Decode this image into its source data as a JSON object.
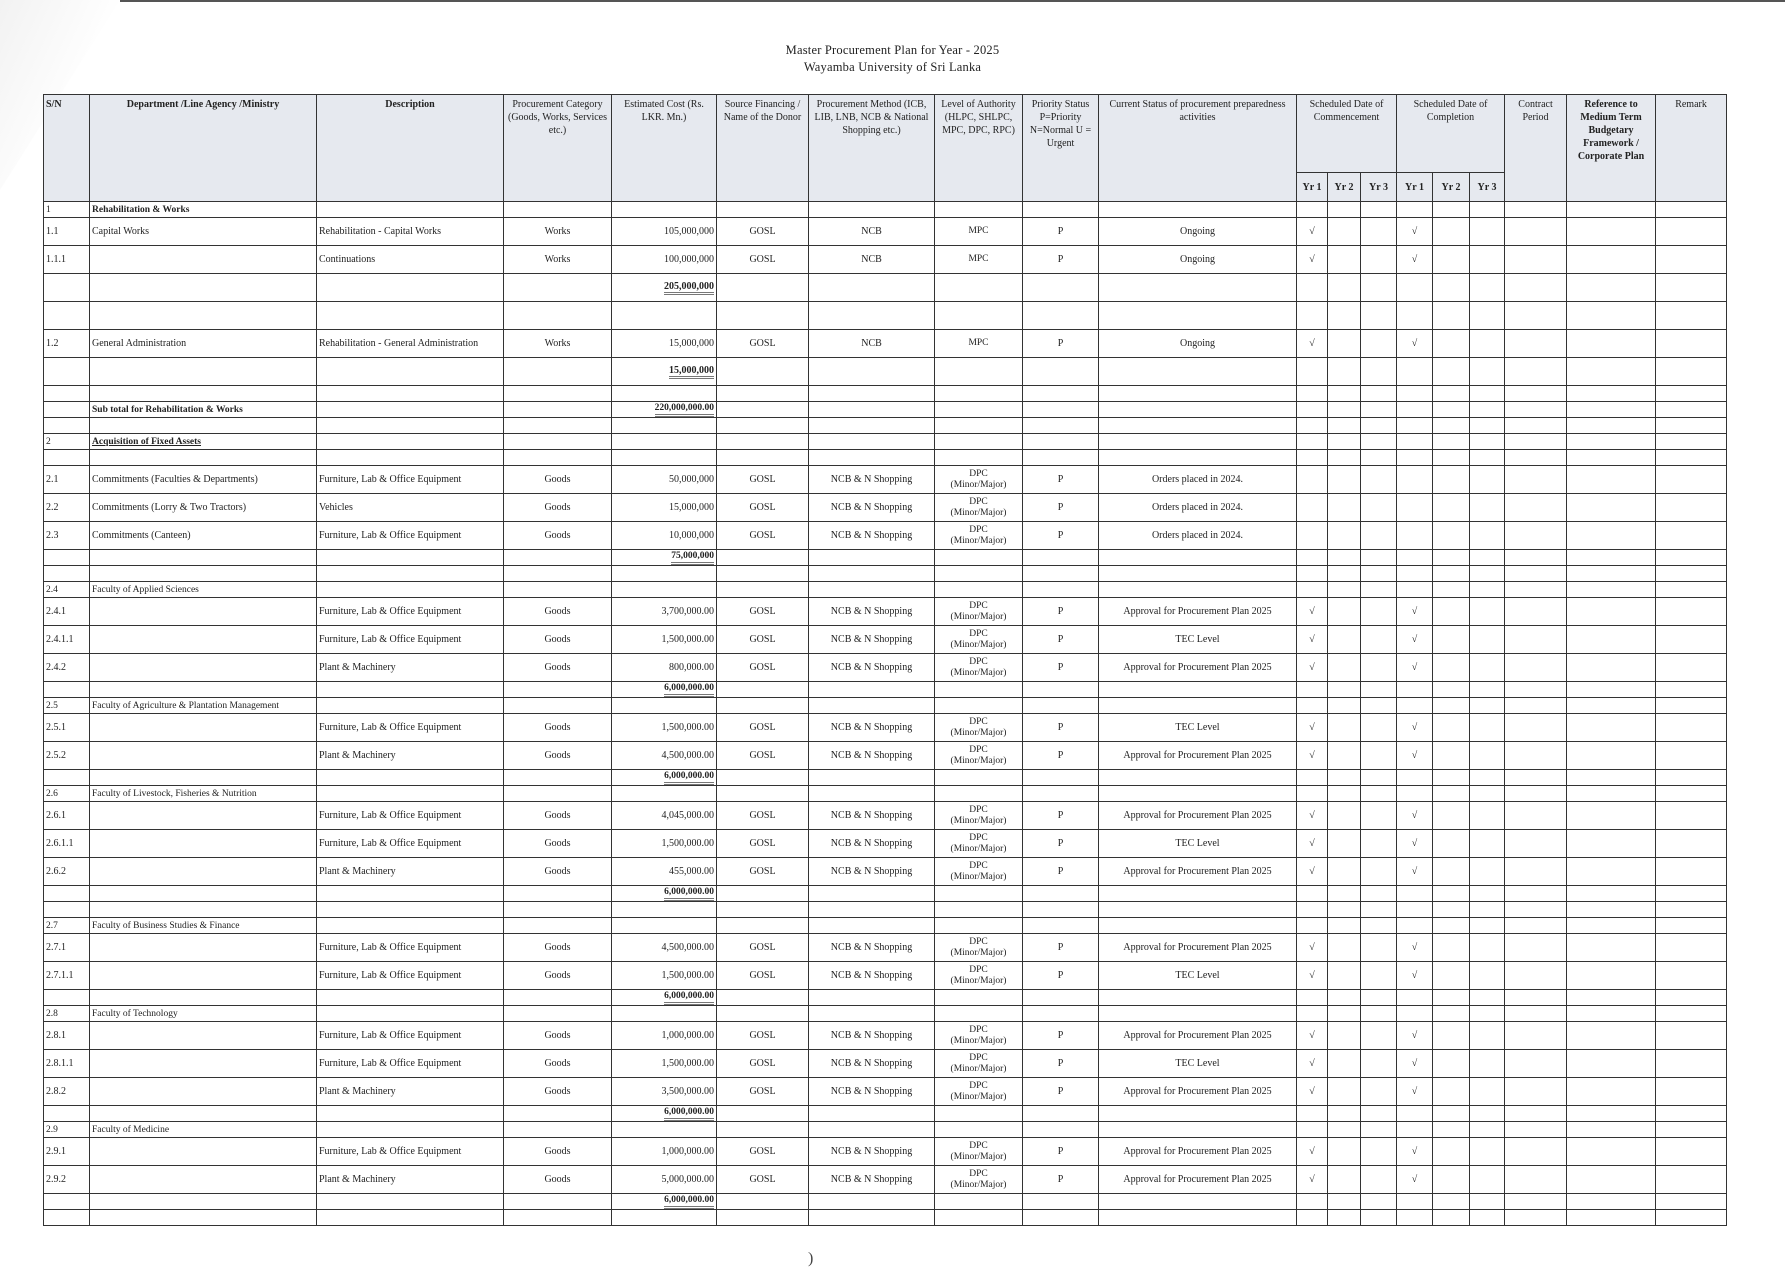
{
  "document": {
    "title": "Master Procurement Plan for Year - 2025",
    "subtitle": "Wayamba University of Sri Lanka"
  },
  "headers": {
    "sn": "S/N",
    "dept": "Department /Line Agency /Ministry",
    "desc": "Description",
    "cat": "Procurement Category (Goods, Works, Services etc.)",
    "cost": "Estimated Cost (Rs. LKR. Mn.)",
    "src": "Source Financing / Name of the Donor",
    "method": "Procurement Method (ICB, LIB, LNB, NCB & National Shopping etc.)",
    "auth": "Level of Authority (HLPC, SHLPC, MPC, DPC, RPC)",
    "pri": "Priority Status P=Priority N=Normal U = Urgent",
    "status": "Current Status of procurement preparedness activities",
    "commence": "Scheduled Date of Commencement",
    "complete": "Scheduled Date of Completion",
    "contract": "Contract Period",
    "ref": "Reference to Medium Term Budgetary Framework / Corporate Plan",
    "remark": "Remark",
    "yr1": "Yr 1",
    "yr2": "Yr 2",
    "yr3": "Yr 3"
  },
  "rows": [
    {
      "kind": "section",
      "sn": "1",
      "dept": "Rehabilitation  & Works",
      "style": "bold"
    },
    {
      "kind": "item",
      "sn": "1.1",
      "dept": "Capital Works",
      "desc": "Rehabilitation  - Capital Works",
      "cat": "Works",
      "cost": "105,000,000",
      "src": "GOSL",
      "method": "NCB",
      "auth": "MPC",
      "pri": "P",
      "status": "Ongoing",
      "c1": "√",
      "e1": "√"
    },
    {
      "kind": "item",
      "sn": "1.1.1",
      "desc": "Continuations",
      "cat": "Works",
      "cost": "100,000,000",
      "src": "GOSL",
      "method": "NCB",
      "auth": "MPC",
      "pri": "P",
      "status": "Ongoing",
      "c1": "√",
      "e1": "√"
    },
    {
      "kind": "tall",
      "cost": "205,000,000",
      "subtotal": true
    },
    {
      "kind": "tall"
    },
    {
      "kind": "item",
      "sn": "1.2",
      "dept": "General Administration",
      "desc": "Rehabilitation  - General Administration",
      "cat": "Works",
      "cost": "15,000,000",
      "src": "GOSL",
      "method": "NCB",
      "auth": "MPC",
      "pri": "P",
      "status": "Ongoing",
      "c1": "√",
      "e1": "√"
    },
    {
      "kind": "tall",
      "cost": "15,000,000",
      "subtotal": true
    },
    {
      "kind": "small"
    },
    {
      "kind": "small",
      "dept": "Sub total for Rehabilitation & Works",
      "cost": "220,000,000.00",
      "subtotal": true,
      "style": "bold"
    },
    {
      "kind": "small"
    },
    {
      "kind": "section",
      "sn": "2",
      "dept": "Acquisition of Fixed Assets",
      "style": "bold ul"
    },
    {
      "kind": "small"
    },
    {
      "kind": "item",
      "sn": "2.1",
      "dept": "Commitments (Faculties & Departments)",
      "desc": "Furniture, Lab & Office Equipment",
      "cat": "Goods",
      "cost": "50,000,000",
      "src": "GOSL",
      "method": "NCB & N Shopping",
      "auth": "DPC\n(Minor/Major)",
      "pri": "P",
      "status": "Orders placed in 2024."
    },
    {
      "kind": "item",
      "sn": "2.2",
      "dept": "Commitments (Lorry & Two Tractors)",
      "desc": "Vehicles",
      "cat": "Goods",
      "cost": "15,000,000",
      "src": "GOSL",
      "method": "NCB & N Shopping",
      "auth": "DPC\n(Minor/Major)",
      "pri": "P",
      "status": "Orders placed in 2024."
    },
    {
      "kind": "item",
      "sn": "2.3",
      "dept": "Commitments (Canteen)",
      "desc": "Furniture, Lab & Office Equipment",
      "cat": "Goods",
      "cost": "10,000,000",
      "src": "GOSL",
      "method": "NCB & N Shopping",
      "auth": "DPC\n(Minor/Major)",
      "pri": "P",
      "status": "Orders placed in 2024."
    },
    {
      "kind": "small",
      "cost": "75,000,000",
      "subtotal": true
    },
    {
      "kind": "small"
    },
    {
      "kind": "section",
      "sn": "2.4",
      "dept": "Faculty of Applied Sciences"
    },
    {
      "kind": "item",
      "sn": "2.4.1",
      "desc": "Furniture, Lab & Office Equipment",
      "cat": "Goods",
      "cost": "3,700,000.00",
      "src": "GOSL",
      "method": "NCB & N Shopping",
      "auth": "DPC\n(Minor/Major)",
      "pri": "P",
      "status": "Approval for Procurement Plan 2025",
      "c1": "√",
      "e1": "√"
    },
    {
      "kind": "item",
      "sn": "2.4.1.1",
      "desc": "Furniture, Lab & Office Equipment",
      "cat": "Goods",
      "cost": "1,500,000.00",
      "src": "GOSL",
      "method": "NCB & N Shopping",
      "auth": "DPC\n(Minor/Major)",
      "pri": "P",
      "status": "TEC Level",
      "c1": "√",
      "e1": "√"
    },
    {
      "kind": "item",
      "sn": "2.4.2",
      "desc": "Plant & Machinery",
      "cat": "Goods",
      "cost": "800,000.00",
      "src": "GOSL",
      "method": "NCB & N Shopping",
      "auth": "DPC\n(Minor/Major)",
      "pri": "P",
      "status": "Approval for Procurement Plan 2025",
      "c1": "√",
      "e1": "√"
    },
    {
      "kind": "small",
      "cost": "6,000,000.00",
      "subtotal": true
    },
    {
      "kind": "section",
      "sn": "2.5",
      "dept": "Faculty of Agriculture & Plantation Management"
    },
    {
      "kind": "item",
      "sn": "2.5.1",
      "desc": "Furniture, Lab & Office Equipment",
      "cat": "Goods",
      "cost": "1,500,000.00",
      "src": "GOSL",
      "method": "NCB & N Shopping",
      "auth": "DPC\n(Minor/Major)",
      "pri": "P",
      "status": "TEC Level",
      "c1": "√",
      "e1": "√"
    },
    {
      "kind": "item",
      "sn": "2.5.2",
      "desc": "Plant & Machinery",
      "cat": "Goods",
      "cost": "4,500,000.00",
      "src": "GOSL",
      "method": "NCB & N Shopping",
      "auth": "DPC\n(Minor/Major)",
      "pri": "P",
      "status": "Approval for Procurement Plan 2025",
      "c1": "√",
      "e1": "√"
    },
    {
      "kind": "small",
      "cost": "6,000,000.00",
      "subtotal": true
    },
    {
      "kind": "section",
      "sn": "2.6",
      "dept": "Faculty of Livestock, Fisheries & Nutrition"
    },
    {
      "kind": "item",
      "sn": "2.6.1",
      "desc": "Furniture, Lab & Office Equipment",
      "cat": "Goods",
      "cost": "4,045,000.00",
      "src": "GOSL",
      "method": "NCB & N Shopping",
      "auth": "DPC\n(Minor/Major)",
      "pri": "P",
      "status": "Approval for Procurement Plan 2025",
      "c1": "√",
      "e1": "√"
    },
    {
      "kind": "item",
      "sn": "2.6.1.1",
      "desc": "Furniture, Lab & Office Equipment",
      "cat": "Goods",
      "cost": "1,500,000.00",
      "src": "GOSL",
      "method": "NCB & N Shopping",
      "auth": "DPC\n(Minor/Major)",
      "pri": "P",
      "status": "TEC Level",
      "c1": "√",
      "e1": "√"
    },
    {
      "kind": "item",
      "sn": "2.6.2",
      "desc": "Plant & Machinery",
      "cat": "Goods",
      "cost": "455,000.00",
      "src": "GOSL",
      "method": "NCB & N Shopping",
      "auth": "DPC\n(Minor/Major)",
      "pri": "P",
      "status": "Approval for Procurement Plan 2025",
      "c1": "√",
      "e1": "√"
    },
    {
      "kind": "small",
      "cost": "6,000,000.00",
      "subtotal": true
    },
    {
      "kind": "small"
    },
    {
      "kind": "section",
      "sn": "2.7",
      "dept": "Faculty of Business Studies & Finance"
    },
    {
      "kind": "item",
      "sn": "2.7.1",
      "desc": "Furniture, Lab & Office Equipment",
      "cat": "Goods",
      "cost": "4,500,000.00",
      "src": "GOSL",
      "method": "NCB & N Shopping",
      "auth": "DPC\n(Minor/Major)",
      "pri": "P",
      "status": "Approval for Procurement Plan 2025",
      "c1": "√",
      "e1": "√"
    },
    {
      "kind": "item",
      "sn": "2.7.1.1",
      "desc": "Furniture, Lab & Office Equipment",
      "cat": "Goods",
      "cost": "1,500,000.00",
      "src": "GOSL",
      "method": "NCB & N Shopping",
      "auth": "DPC\n(Minor/Major)",
      "pri": "P",
      "status": "TEC Level",
      "c1": "√",
      "e1": "√"
    },
    {
      "kind": "small",
      "cost": "6,000,000.00",
      "subtotal": true
    },
    {
      "kind": "section",
      "sn": "2.8",
      "dept": "Faculty of Technology"
    },
    {
      "kind": "item",
      "sn": "2.8.1",
      "desc": "Furniture, Lab & Office Equipment",
      "cat": "Goods",
      "cost": "1,000,000.00",
      "src": "GOSL",
      "method": "NCB & N Shopping",
      "auth": "DPC\n(Minor/Major)",
      "pri": "P",
      "status": "Approval for Procurement Plan 2025",
      "c1": "√",
      "e1": "√"
    },
    {
      "kind": "item",
      "sn": "2.8.1.1",
      "desc": "Furniture, Lab & Office Equipment",
      "cat": "Goods",
      "cost": "1,500,000.00",
      "src": "GOSL",
      "method": "NCB & N Shopping",
      "auth": "DPC\n(Minor/Major)",
      "pri": "P",
      "status": "TEC Level",
      "c1": "√",
      "e1": "√"
    },
    {
      "kind": "item",
      "sn": "2.8.2",
      "desc": "Plant & Machinery",
      "cat": "Goods",
      "cost": "3,500,000.00",
      "src": "GOSL",
      "method": "NCB & N Shopping",
      "auth": "DPC\n(Minor/Major)",
      "pri": "P",
      "status": "Approval for Procurement Plan 2025",
      "c1": "√",
      "e1": "√"
    },
    {
      "kind": "small",
      "cost": "6,000,000.00",
      "subtotal": true
    },
    {
      "kind": "section",
      "sn": "2.9",
      "dept": "Faculty of Medicine"
    },
    {
      "kind": "item",
      "sn": "2.9.1",
      "desc": "Furniture, Lab & Office Equipment",
      "cat": "Goods",
      "cost": "1,000,000.00",
      "src": "GOSL",
      "method": "NCB & N Shopping",
      "auth": "DPC\n(Minor/Major)",
      "pri": "P",
      "status": "Approval for Procurement Plan 2025",
      "c1": "√",
      "e1": "√"
    },
    {
      "kind": "item",
      "sn": "2.9.2",
      "desc": "Plant & Machinery",
      "cat": "Goods",
      "cost": "5,000,000.00",
      "src": "GOSL",
      "method": "NCB & N Shopping",
      "auth": "DPC\n(Minor/Major)",
      "pri": "P",
      "status": "Approval for Procurement Plan 2025",
      "c1": "√",
      "e1": "√"
    },
    {
      "kind": "small",
      "cost": "6,000,000.00",
      "subtotal": true
    },
    {
      "kind": "small"
    }
  ]
}
